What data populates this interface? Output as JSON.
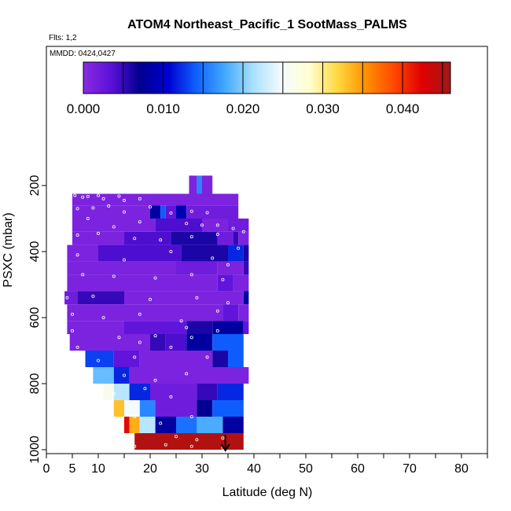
{
  "chart_data": {
    "type": "heatmap",
    "title": "ATOM4 Northeast_Pacific_1 SootMass_PALMS",
    "flights_label": "Flts: 1,2",
    "dates_label": "MMDD: 0424,0427",
    "xlabel": "Latitude (deg N)",
    "ylabel": "PSXC (mbar)",
    "xlim": [
      0,
      85
    ],
    "ylim": [
      1000,
      0
    ],
    "x_ticks": [
      0,
      5,
      10,
      20,
      30,
      40,
      50,
      60,
      70,
      80
    ],
    "y_ticks": [
      200,
      400,
      600,
      800,
      1000
    ],
    "colorbar": {
      "min": 0.0,
      "max": 0.046,
      "ticks": [
        "0.000",
        "0.010",
        "0.020",
        "0.030",
        "0.040"
      ],
      "tick_values": [
        0.0,
        0.01,
        0.02,
        0.03,
        0.04
      ],
      "colors": [
        "#8a2be2",
        "#5a10d8",
        "#000090",
        "#0000d0",
        "#1060ff",
        "#40a8ff",
        "#a8e0ff",
        "#f4fbff",
        "#ffffd0",
        "#ffd840",
        "#ff9000",
        "#ff4800",
        "#e00000",
        "#a01818"
      ]
    },
    "grid": false,
    "legend": "top",
    "rows": [
      {
        "p0": 170,
        "p1": 225,
        "lat0": 27.5,
        "lat1": 32,
        "segments": [
          {
            "from": 27.5,
            "to": 29.0,
            "v": 0.001
          },
          {
            "from": 29.0,
            "to": 30.0,
            "v": 0.016
          },
          {
            "from": 30.0,
            "to": 32.0,
            "v": 0.001
          }
        ]
      },
      {
        "p0": 225,
        "p1": 260,
        "lat0": 5,
        "lat1": 37,
        "segments": [
          {
            "from": 5,
            "to": 37,
            "v": 0.001
          }
        ]
      },
      {
        "p0": 260,
        "p1": 300,
        "lat0": 5,
        "lat1": 37,
        "segments": [
          {
            "from": 5,
            "to": 20,
            "v": 0.001
          },
          {
            "from": 20,
            "to": 22,
            "v": 0.008
          },
          {
            "from": 22,
            "to": 23,
            "v": 0.014
          },
          {
            "from": 23,
            "to": 25,
            "v": 0.003
          },
          {
            "from": 25,
            "to": 27,
            "v": 0.009
          },
          {
            "from": 27,
            "to": 37,
            "v": 0.002
          }
        ]
      },
      {
        "p0": 300,
        "p1": 340,
        "lat0": 5,
        "lat1": 39,
        "segments": [
          {
            "from": 5,
            "to": 21,
            "v": 0.001
          },
          {
            "from": 21,
            "to": 30,
            "v": 0.004
          },
          {
            "from": 30,
            "to": 35,
            "v": 0.001
          },
          {
            "from": 35,
            "to": 39,
            "v": 0.002
          }
        ]
      },
      {
        "p0": 340,
        "p1": 380,
        "lat0": 5,
        "lat1": 39,
        "segments": [
          {
            "from": 5,
            "to": 15,
            "v": 0.001
          },
          {
            "from": 15,
            "to": 24,
            "v": 0.004
          },
          {
            "from": 24,
            "to": 33,
            "v": 0.006
          },
          {
            "from": 33,
            "to": 36,
            "v": 0.002
          },
          {
            "from": 36,
            "to": 37,
            "v": 0.005
          },
          {
            "from": 37,
            "to": 39,
            "v": 0.001
          }
        ]
      },
      {
        "p0": 380,
        "p1": 430,
        "lat0": 4,
        "lat1": 39,
        "segments": [
          {
            "from": 4,
            "to": 10,
            "v": 0.001
          },
          {
            "from": 10,
            "to": 26,
            "v": 0.004
          },
          {
            "from": 26,
            "to": 35,
            "v": 0.006
          },
          {
            "from": 35,
            "to": 38,
            "v": 0.012
          },
          {
            "from": 38,
            "to": 39,
            "v": 0.006
          }
        ]
      },
      {
        "p0": 430,
        "p1": 470,
        "lat0": 4,
        "lat1": 39,
        "segments": [
          {
            "from": 4,
            "to": 25,
            "v": 0.001
          },
          {
            "from": 25,
            "to": 33,
            "v": 0.002
          },
          {
            "from": 33,
            "to": 38,
            "v": 0.001
          },
          {
            "from": 38,
            "to": 39,
            "v": 0.005
          }
        ]
      },
      {
        "p0": 470,
        "p1": 520,
        "lat0": 4,
        "lat1": 39,
        "segments": [
          {
            "from": 4,
            "to": 33,
            "v": 0.001
          },
          {
            "from": 33,
            "to": 36,
            "v": 0.003
          },
          {
            "from": 36,
            "to": 39,
            "v": 0.001
          }
        ]
      },
      {
        "p0": 520,
        "p1": 560,
        "lat0": 3.5,
        "lat1": 39,
        "segments": [
          {
            "from": 3.5,
            "to": 6,
            "v": 0.002
          },
          {
            "from": 6,
            "to": 15,
            "v": 0.005
          },
          {
            "from": 15,
            "to": 38,
            "v": 0.001
          },
          {
            "from": 38,
            "to": 39,
            "v": 0.008
          }
        ]
      },
      {
        "p0": 560,
        "p1": 610,
        "lat0": 4,
        "lat1": 39,
        "segments": [
          {
            "from": 4,
            "to": 34,
            "v": 0.001
          },
          {
            "from": 34,
            "to": 37,
            "v": 0.003
          },
          {
            "from": 37,
            "to": 39,
            "v": 0.001
          }
        ]
      },
      {
        "p0": 610,
        "p1": 650,
        "lat0": 4,
        "lat1": 39,
        "segments": [
          {
            "from": 4,
            "to": 15,
            "v": 0.001
          },
          {
            "from": 15,
            "to": 27,
            "v": 0.003
          },
          {
            "from": 27,
            "to": 32,
            "v": 0.006
          },
          {
            "from": 32,
            "to": 38,
            "v": 0.008
          },
          {
            "from": 38,
            "to": 39,
            "v": 0.003
          }
        ]
      },
      {
        "p0": 650,
        "p1": 700,
        "lat0": 4.5,
        "lat1": 38,
        "segments": [
          {
            "from": 4.5,
            "to": 20,
            "v": 0.001
          },
          {
            "from": 20,
            "to": 23,
            "v": 0.005
          },
          {
            "from": 23,
            "to": 27,
            "v": 0.004
          },
          {
            "from": 27,
            "to": 32,
            "v": 0.008
          },
          {
            "from": 32,
            "to": 38,
            "v": 0.014
          }
        ]
      },
      {
        "p0": 700,
        "p1": 750,
        "lat0": 7.5,
        "lat1": 38,
        "segments": [
          {
            "from": 7.5,
            "to": 13,
            "v": 0.013
          },
          {
            "from": 13,
            "to": 18,
            "v": 0.003
          },
          {
            "from": 18,
            "to": 32,
            "v": 0.001
          },
          {
            "from": 32,
            "to": 35,
            "v": 0.006
          },
          {
            "from": 35,
            "to": 38,
            "v": 0.014
          }
        ]
      },
      {
        "p0": 750,
        "p1": 800,
        "lat0": 9,
        "lat1": 39,
        "segments": [
          {
            "from": 9,
            "to": 13,
            "v": 0.019
          },
          {
            "from": 13,
            "to": 16,
            "v": 0.012
          },
          {
            "from": 16,
            "to": 39,
            "v": 0.001
          }
        ]
      },
      {
        "p0": 800,
        "p1": 850,
        "lat0": 11,
        "lat1": 38,
        "segments": [
          {
            "from": 11,
            "to": 13,
            "v": 0.026
          },
          {
            "from": 13,
            "to": 16,
            "v": 0.022
          },
          {
            "from": 16,
            "to": 20,
            "v": 0.012
          },
          {
            "from": 20,
            "to": 29,
            "v": 0.002
          },
          {
            "from": 29,
            "to": 33,
            "v": 0.005
          },
          {
            "from": 33,
            "to": 38,
            "v": 0.012
          }
        ]
      },
      {
        "p0": 850,
        "p1": 900,
        "lat0": 13,
        "lat1": 38,
        "segments": [
          {
            "from": 13,
            "to": 15,
            "v": 0.033
          },
          {
            "from": 15,
            "to": 18,
            "v": 0.025
          },
          {
            "from": 18,
            "to": 21,
            "v": 0.016
          },
          {
            "from": 21,
            "to": 29,
            "v": 0.002
          },
          {
            "from": 29,
            "to": 32,
            "v": 0.007
          },
          {
            "from": 32,
            "to": 38,
            "v": 0.014
          }
        ]
      },
      {
        "p0": 900,
        "p1": 950,
        "lat0": 15,
        "lat1": 38,
        "segments": [
          {
            "from": 15,
            "to": 16,
            "v": 0.042
          },
          {
            "from": 16,
            "to": 18,
            "v": 0.034
          },
          {
            "from": 18,
            "to": 21,
            "v": 0.022
          },
          {
            "from": 21,
            "to": 25,
            "v": 0.008
          },
          {
            "from": 25,
            "to": 29,
            "v": 0.015
          },
          {
            "from": 29,
            "to": 34,
            "v": 0.018
          },
          {
            "from": 34,
            "to": 38,
            "v": 0.008
          }
        ]
      },
      {
        "p0": 950,
        "p1": 1000,
        "lat0": 17,
        "lat1": 38,
        "segments": [
          {
            "from": 17,
            "to": 38,
            "v": 0.045
          }
        ]
      }
    ],
    "points": [
      [
        5.5,
        230
      ],
      [
        7,
        235
      ],
      [
        8,
        233
      ],
      [
        10,
        230
      ],
      [
        11,
        240
      ],
      [
        14,
        232
      ],
      [
        15,
        245
      ],
      [
        18,
        240
      ],
      [
        6,
        270
      ],
      [
        9,
        268
      ],
      [
        12,
        262
      ],
      [
        15,
        280
      ],
      [
        20,
        265
      ],
      [
        24,
        283
      ],
      [
        28,
        278
      ],
      [
        31,
        282
      ],
      [
        8,
        300
      ],
      [
        13,
        325
      ],
      [
        18,
        310
      ],
      [
        27,
        315
      ],
      [
        30,
        320
      ],
      [
        33,
        320
      ],
      [
        36,
        330
      ],
      [
        38,
        340
      ],
      [
        6,
        350
      ],
      [
        10,
        345
      ],
      [
        17,
        360
      ],
      [
        22,
        365
      ],
      [
        28,
        355
      ],
      [
        33,
        348
      ],
      [
        37,
        390
      ],
      [
        6,
        410
      ],
      [
        15,
        425
      ],
      [
        24,
        400
      ],
      [
        32,
        420
      ],
      [
        35,
        440
      ],
      [
        7,
        470
      ],
      [
        13,
        475
      ],
      [
        21,
        480
      ],
      [
        28,
        470
      ],
      [
        34,
        485
      ],
      [
        4,
        540
      ],
      [
        9,
        535
      ],
      [
        20,
        545
      ],
      [
        29,
        540
      ],
      [
        35,
        555
      ],
      [
        5,
        590
      ],
      [
        11,
        600
      ],
      [
        18,
        590
      ],
      [
        26,
        610
      ],
      [
        33,
        580
      ],
      [
        5,
        640
      ],
      [
        14,
        660
      ],
      [
        21,
        655
      ],
      [
        27,
        630
      ],
      [
        33,
        640
      ],
      [
        6,
        690
      ],
      [
        18,
        675
      ],
      [
        24,
        690
      ],
      [
        28,
        660
      ],
      [
        10,
        730
      ],
      [
        17,
        720
      ],
      [
        31,
        720
      ],
      [
        15,
        775
      ],
      [
        21,
        790
      ],
      [
        27,
        770
      ],
      [
        13,
        830
      ],
      [
        19,
        815
      ],
      [
        24,
        840
      ],
      [
        17,
        900
      ],
      [
        22,
        920
      ],
      [
        28,
        900
      ],
      [
        25,
        960
      ],
      [
        29,
        970
      ],
      [
        34,
        965
      ],
      [
        17,
        990
      ],
      [
        23,
        985
      ],
      [
        28,
        990
      ],
      [
        34,
        995
      ]
    ],
    "arrow": {
      "lat": 34.5,
      "p_from": 955,
      "p_to": 1000
    }
  }
}
